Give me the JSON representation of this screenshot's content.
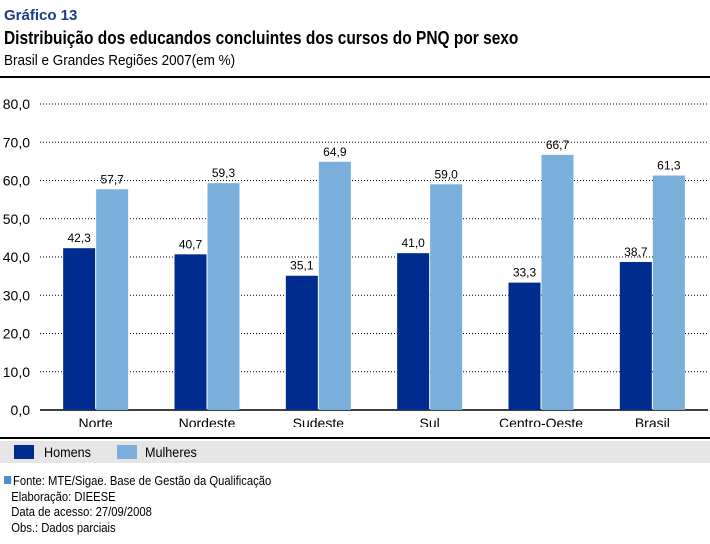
{
  "header": {
    "label": "Gráfico 13",
    "title": "Distribuição dos educandos concluintes dos cursos do PNQ por sexo",
    "subtitle": "Brasil e Grandes Regiões 2007(em %)"
  },
  "colors": {
    "homens": "#002b8f",
    "mulheres": "#7aaedb",
    "grid": "#000000",
    "label_blue": "#1a3a8c",
    "legend_band": "#e6e6e6"
  },
  "chart_data": {
    "type": "bar",
    "title": "Distribuição dos educandos concluintes dos cursos do PNQ por sexo",
    "xlabel": "",
    "ylabel": "%",
    "ylim": [
      0,
      80
    ],
    "yticks": [
      "0,0",
      "10,0",
      "20,0",
      "30,0",
      "40,0",
      "50,0",
      "60,0",
      "70,0",
      "80,0"
    ],
    "categories": [
      "Norte",
      "Nordeste",
      "Sudeste",
      "Sul",
      "Centro-Oeste",
      "Brasil"
    ],
    "series": [
      {
        "name": "Homens",
        "values": [
          42.3,
          40.7,
          35.1,
          41.0,
          33.3,
          38.7
        ],
        "labels": [
          "42,3",
          "40,7",
          "35,1",
          "41,0",
          "33,3",
          "38,7"
        ]
      },
      {
        "name": "Mulheres",
        "values": [
          57.7,
          59.3,
          64.9,
          59.0,
          66.7,
          61.3
        ],
        "labels": [
          "57,7",
          "59,3",
          "64,9",
          "59,0",
          "66,7",
          "61,3"
        ]
      }
    ],
    "grid": true,
    "legend": "bottom-left"
  },
  "legend": {
    "homens": "Homens",
    "mulheres": "Mulheres"
  },
  "notes": {
    "source": "Fonte: MTE/Sigae. Base de Gestão da Qualificação",
    "elaboracao": "Elaboração: DIEESE",
    "data_acesso": "Data de acesso: 27/09/2008",
    "obs": "Obs.: Dados parciais"
  }
}
